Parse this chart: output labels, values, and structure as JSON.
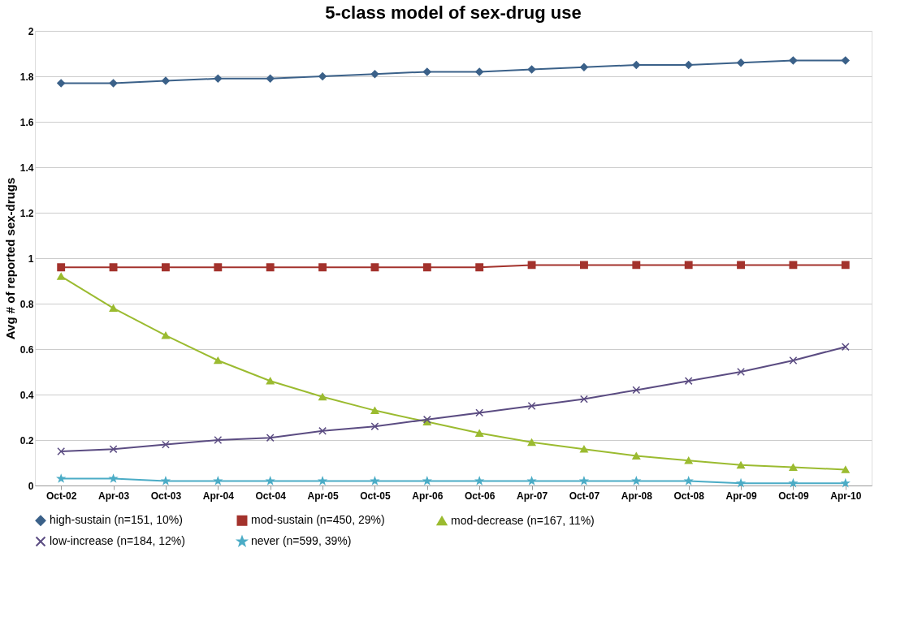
{
  "chart_data": {
    "type": "line",
    "title": "5-class model of sex-drug use",
    "ylabel": "Avg # of reported sex-drugs",
    "categories": [
      "Oct-02",
      "Apr-03",
      "Oct-03",
      "Apr-04",
      "Oct-04",
      "Apr-05",
      "Oct-05",
      "Apr-06",
      "Oct-06",
      "Apr-07",
      "Oct-07",
      "Apr-08",
      "Oct-08",
      "Apr-09",
      "Oct-09",
      "Apr-10"
    ],
    "series": [
      {
        "name": "high-sustain (n=151, 10%)",
        "color": "#3b6189",
        "marker": "diamond",
        "values": [
          1.77,
          1.77,
          1.78,
          1.79,
          1.79,
          1.8,
          1.81,
          1.82,
          1.82,
          1.83,
          1.84,
          1.85,
          1.85,
          1.86,
          1.87,
          1.87
        ]
      },
      {
        "name": "mod-sustain (n=450, 29%)",
        "color": "#a3322c",
        "marker": "square",
        "values": [
          0.96,
          0.96,
          0.96,
          0.96,
          0.96,
          0.96,
          0.96,
          0.96,
          0.96,
          0.97,
          0.97,
          0.97,
          0.97,
          0.97,
          0.97,
          0.97
        ]
      },
      {
        "name": "mod-decrease (n=167, 11%)",
        "color": "#9bbb30",
        "marker": "triangle",
        "values": [
          0.92,
          0.78,
          0.66,
          0.55,
          0.46,
          0.39,
          0.33,
          0.28,
          0.23,
          0.19,
          0.16,
          0.13,
          0.11,
          0.09,
          0.08,
          0.07
        ]
      },
      {
        "name": "low-increase (n=184, 12%)",
        "color": "#5b4c82",
        "marker": "cross",
        "values": [
          0.15,
          0.16,
          0.18,
          0.2,
          0.21,
          0.24,
          0.26,
          0.29,
          0.32,
          0.35,
          0.38,
          0.42,
          0.46,
          0.5,
          0.55,
          0.61
        ]
      },
      {
        "name": "never (n=599, 39%)",
        "color": "#4bacc6",
        "marker": "star",
        "values": [
          0.03,
          0.03,
          0.02,
          0.02,
          0.02,
          0.02,
          0.02,
          0.02,
          0.02,
          0.02,
          0.02,
          0.02,
          0.02,
          0.01,
          0.01,
          0.01
        ]
      }
    ],
    "ylim": [
      0,
      2
    ],
    "yticks": [
      0,
      0.2,
      0.4,
      0.6,
      0.8,
      1,
      1.2,
      1.4,
      1.6,
      1.8,
      2
    ],
    "grid": "y",
    "legend": "bottom",
    "line_style": "solid"
  }
}
